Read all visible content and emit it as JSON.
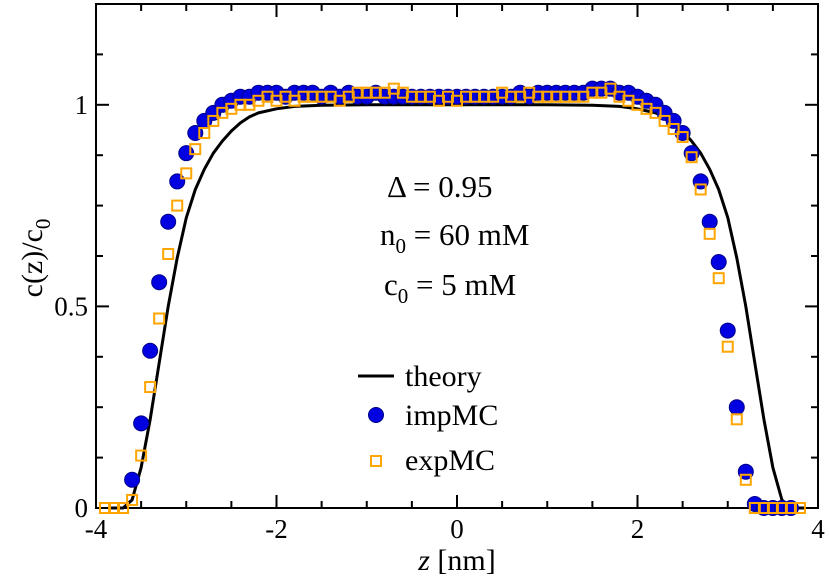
{
  "chart_data": {
    "type": "scatter",
    "xlabel_var": "z",
    "xlabel_unit": " [nm]",
    "ylabel": "c(z)/c",
    "ylabel_sub": "0",
    "xlim": [
      -4,
      4
    ],
    "ylim": [
      0,
      1.25
    ],
    "xticks": [
      -4,
      -2,
      0,
      2,
      4
    ],
    "xtick_labels": [
      "-4",
      "-2",
      "0",
      "2",
      "4"
    ],
    "yticks": [
      0,
      0.5,
      1
    ],
    "ytick_labels": [
      "0",
      "0.5",
      "1"
    ],
    "annotations": {
      "delta": "Δ = 0.95",
      "n0_main": "n",
      "n0_sub": "0",
      "n0_rest": " = 60 mM",
      "c0_main": "c",
      "c0_sub": "0",
      "c0_rest": " = 5 mM"
    },
    "legend": {
      "placement": "center-bottom",
      "entries": [
        "theory",
        "impMC",
        "expMC"
      ]
    },
    "colors": {
      "theory": "#000000",
      "impMC_fill": "#0000e0",
      "impMC_edge": "#00008b",
      "expMC": "#ffa500"
    },
    "series": [
      {
        "name": "theory",
        "style": "line",
        "x": [
          -3.85,
          -3.7,
          -3.6,
          -3.5,
          -3.4,
          -3.3,
          -3.2,
          -3.1,
          -3.0,
          -2.9,
          -2.8,
          -2.7,
          -2.6,
          -2.5,
          -2.4,
          -2.3,
          -2.2,
          -2.0,
          -1.8,
          -1.5,
          -1.0,
          -0.5,
          0,
          0.5,
          1.0,
          1.5,
          1.8,
          2.0,
          2.2,
          2.3,
          2.4,
          2.5,
          2.6,
          2.7,
          2.8,
          2.9,
          3.0,
          3.1,
          3.2,
          3.3,
          3.4,
          3.5,
          3.6,
          3.7,
          3.85
        ],
        "y": [
          0,
          0,
          0.02,
          0.1,
          0.22,
          0.36,
          0.5,
          0.62,
          0.72,
          0.79,
          0.84,
          0.88,
          0.91,
          0.935,
          0.955,
          0.97,
          0.98,
          0.99,
          0.996,
          0.999,
          1.0,
          1.0,
          1.0,
          1.0,
          1.0,
          0.999,
          0.996,
          0.99,
          0.98,
          0.97,
          0.955,
          0.935,
          0.91,
          0.88,
          0.84,
          0.79,
          0.72,
          0.62,
          0.5,
          0.36,
          0.22,
          0.1,
          0.02,
          0,
          0
        ]
      },
      {
        "name": "impMC",
        "style": "filled-circle",
        "x": [
          -3.6,
          -3.5,
          -3.4,
          -3.3,
          -3.2,
          -3.1,
          -3.0,
          -2.9,
          -2.8,
          -2.7,
          -2.6,
          -2.5,
          -2.4,
          -2.3,
          -2.2,
          -2.1,
          -2.0,
          -1.9,
          -1.8,
          -1.7,
          -1.6,
          -1.5,
          -1.4,
          -1.3,
          -1.2,
          -1.1,
          -1.0,
          -0.9,
          -0.8,
          -0.7,
          -0.6,
          -0.5,
          -0.4,
          -0.3,
          -0.2,
          -0.1,
          0,
          0.1,
          0.2,
          0.3,
          0.4,
          0.5,
          0.6,
          0.7,
          0.8,
          0.9,
          1.0,
          1.1,
          1.2,
          1.3,
          1.4,
          1.5,
          1.6,
          1.7,
          1.8,
          1.9,
          2.0,
          2.1,
          2.2,
          2.3,
          2.4,
          2.5,
          2.6,
          2.7,
          2.8,
          2.9,
          3.0,
          3.1,
          3.2,
          3.3,
          3.4,
          3.5,
          3.6,
          3.7
        ],
        "y": [
          0.07,
          0.21,
          0.39,
          0.56,
          0.71,
          0.81,
          0.88,
          0.93,
          0.96,
          0.98,
          1.0,
          1.01,
          1.02,
          1.02,
          1.03,
          1.03,
          1.03,
          1.02,
          1.03,
          1.03,
          1.03,
          1.02,
          1.03,
          1.02,
          1.03,
          1.02,
          1.02,
          1.03,
          1.02,
          1.02,
          1.02,
          1.02,
          1.02,
          1.02,
          1.02,
          1.02,
          1.02,
          1.02,
          1.02,
          1.02,
          1.02,
          1.02,
          1.02,
          1.03,
          1.02,
          1.03,
          1.03,
          1.03,
          1.03,
          1.03,
          1.03,
          1.04,
          1.04,
          1.04,
          1.03,
          1.03,
          1.02,
          1.01,
          1.0,
          0.98,
          0.96,
          0.93,
          0.88,
          0.81,
          0.71,
          0.61,
          0.44,
          0.25,
          0.09,
          0.01,
          0.0,
          0.0,
          0.0,
          0.0
        ]
      },
      {
        "name": "expMC",
        "style": "open-square",
        "x": [
          -3.9,
          -3.8,
          -3.7,
          -3.6,
          -3.5,
          -3.4,
          -3.3,
          -3.2,
          -3.1,
          -3.0,
          -2.9,
          -2.8,
          -2.7,
          -2.6,
          -2.5,
          -2.4,
          -2.3,
          -2.2,
          -2.1,
          -2.0,
          -1.9,
          -1.8,
          -1.7,
          -1.6,
          -1.5,
          -1.4,
          -1.3,
          -1.2,
          -1.1,
          -1.0,
          -0.9,
          -0.8,
          -0.7,
          -0.6,
          -0.5,
          -0.4,
          -0.3,
          -0.2,
          -0.1,
          0,
          0.1,
          0.2,
          0.3,
          0.4,
          0.5,
          0.6,
          0.7,
          0.8,
          0.9,
          1.0,
          1.1,
          1.2,
          1.3,
          1.4,
          1.5,
          1.6,
          1.7,
          1.8,
          1.9,
          2.0,
          2.1,
          2.2,
          2.3,
          2.4,
          2.5,
          2.6,
          2.7,
          2.8,
          2.9,
          3.0,
          3.1,
          3.2,
          3.3,
          3.4,
          3.5,
          3.6,
          3.7,
          3.8
        ],
        "y": [
          0.0,
          0.0,
          0.0,
          0.02,
          0.13,
          0.3,
          0.47,
          0.63,
          0.75,
          0.83,
          0.89,
          0.93,
          0.96,
          0.98,
          0.99,
          1.0,
          1.0,
          1.01,
          1.02,
          1.01,
          1.02,
          1.01,
          1.02,
          1.02,
          1.02,
          1.02,
          1.01,
          1.02,
          1.03,
          1.03,
          1.03,
          1.03,
          1.04,
          1.03,
          1.02,
          1.02,
          1.02,
          1.01,
          1.02,
          1.01,
          1.02,
          1.02,
          1.02,
          1.02,
          1.03,
          1.02,
          1.02,
          1.03,
          1.02,
          1.02,
          1.02,
          1.02,
          1.02,
          1.02,
          1.03,
          1.03,
          1.04,
          1.02,
          1.01,
          1.0,
          0.99,
          0.98,
          0.96,
          0.94,
          0.92,
          0.87,
          0.79,
          0.68,
          0.57,
          0.4,
          0.22,
          0.07,
          0.0,
          0.0,
          0.0,
          0.0,
          0.0,
          0.0
        ]
      }
    ]
  }
}
